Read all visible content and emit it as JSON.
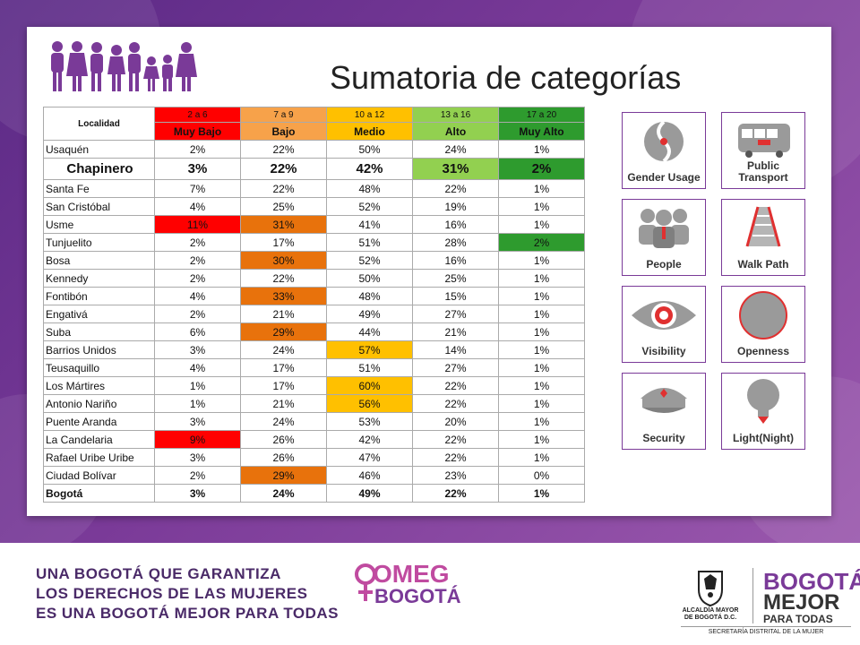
{
  "slide": {
    "title": "Sumatoria de categorías"
  },
  "table": {
    "header_localidad": "Localidad",
    "ranges": [
      "2 a 6",
      "7 a 9",
      "10 a 12",
      "13 a 16",
      "17 a 20"
    ],
    "levels": [
      "Muy Bajo",
      "Bajo",
      "Medio",
      "Alto",
      "Muy Alto"
    ],
    "header_colors": [
      "#ff0000",
      "#f7a24a",
      "#ffc000",
      "#92d050",
      "#2e9b2e"
    ],
    "rows": [
      {
        "name": "Usaquén",
        "values": [
          "2%",
          "22%",
          "50%",
          "24%",
          "1%"
        ]
      },
      {
        "name": "Chapinero",
        "values": [
          "3%",
          "22%",
          "42%",
          "31%",
          "2%"
        ]
      },
      {
        "name": "Santa Fe",
        "values": [
          "7%",
          "22%",
          "48%",
          "22%",
          "1%"
        ]
      },
      {
        "name": "San Cristóbal",
        "values": [
          "4%",
          "25%",
          "52%",
          "19%",
          "1%"
        ]
      },
      {
        "name": "Usme",
        "values": [
          "11%",
          "31%",
          "41%",
          "16%",
          "1%"
        ]
      },
      {
        "name": "Tunjuelito",
        "values": [
          "2%",
          "17%",
          "51%",
          "28%",
          "2%"
        ]
      },
      {
        "name": "Bosa",
        "values": [
          "2%",
          "30%",
          "52%",
          "16%",
          "1%"
        ]
      },
      {
        "name": "Kennedy",
        "values": [
          "2%",
          "22%",
          "50%",
          "25%",
          "1%"
        ]
      },
      {
        "name": "Fontibón",
        "values": [
          "4%",
          "33%",
          "48%",
          "15%",
          "1%"
        ]
      },
      {
        "name": "Engativá",
        "values": [
          "2%",
          "21%",
          "49%",
          "27%",
          "1%"
        ]
      },
      {
        "name": "Suba",
        "values": [
          "6%",
          "29%",
          "44%",
          "21%",
          "1%"
        ]
      },
      {
        "name": "Barrios Unidos",
        "values": [
          "3%",
          "24%",
          "57%",
          "14%",
          "1%"
        ]
      },
      {
        "name": "Teusaquillo",
        "values": [
          "4%",
          "17%",
          "51%",
          "27%",
          "1%"
        ]
      },
      {
        "name": "Los Mártires",
        "values": [
          "1%",
          "17%",
          "60%",
          "22%",
          "1%"
        ]
      },
      {
        "name": "Antonio Nariño",
        "values": [
          "1%",
          "21%",
          "56%",
          "22%",
          "1%"
        ]
      },
      {
        "name": "Puente Aranda",
        "values": [
          "3%",
          "24%",
          "53%",
          "20%",
          "1%"
        ]
      },
      {
        "name": "La Candelaria",
        "values": [
          "9%",
          "26%",
          "42%",
          "22%",
          "1%"
        ]
      },
      {
        "name": "Rafael Uribe Uribe",
        "values": [
          "3%",
          "26%",
          "47%",
          "22%",
          "1%"
        ]
      },
      {
        "name": "Ciudad Bolívar",
        "values": [
          "2%",
          "29%",
          "46%",
          "23%",
          "0%"
        ]
      },
      {
        "name": "Bogotá",
        "values": [
          "3%",
          "24%",
          "49%",
          "22%",
          "1%"
        ]
      }
    ]
  },
  "icons": [
    {
      "label": "Gender Usage",
      "icon": "gender-usage-icon"
    },
    {
      "label": "Public Transport",
      "icon": "bus-icon"
    },
    {
      "label": "People",
      "icon": "people-icon"
    },
    {
      "label": "Walk Path",
      "icon": "walk-path-icon"
    },
    {
      "label": "Visibility",
      "icon": "eye-icon"
    },
    {
      "label": "Openness",
      "icon": "openness-icon"
    },
    {
      "label": "Security",
      "icon": "police-cap-icon"
    },
    {
      "label": "Light(Night)",
      "icon": "light-bulb-icon"
    }
  ],
  "footer": {
    "slogan_1": "UNA BOGOTÁ QUE GARANTIZA",
    "slogan_2": "LOS DERECHOS DE LAS MUJERES",
    "slogan_3": "ES UNA BOGOTÁ MEJOR PARA TODAS",
    "omeg_1": "OMEG",
    "omeg_2": "BOGOTÁ",
    "alcaldia": "ALCALDÍA MAYOR DE BOGOTÁ D.C.",
    "bmpt_1": "BOGOTÁ",
    "bmpt_2": "MEJOR",
    "bmpt_3": "PARA TODAS",
    "secretaria": "SECRETARÍA DISTRITAL DE LA MUJER"
  }
}
